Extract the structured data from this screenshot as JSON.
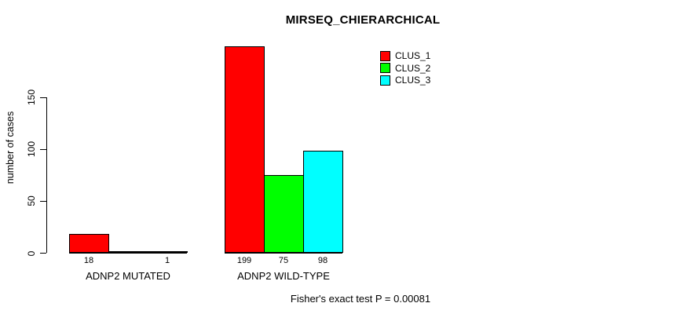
{
  "page": {
    "background": "#ffffff",
    "text_color": "#000000"
  },
  "chart_data": {
    "type": "bar",
    "title": "MIRSEQ_CHIERARCHICAL",
    "ylabel": "number of cases",
    "xlabel": "",
    "categories": [
      "ADNP2 MUTATED",
      "ADNP2 WILD-TYPE"
    ],
    "series": [
      {
        "name": "CLUS_1",
        "color": "#ff0000",
        "values": [
          18,
          199
        ]
      },
      {
        "name": "CLUS_2",
        "color": "#00ff00",
        "values": [
          0,
          75
        ]
      },
      {
        "name": "CLUS_3",
        "color": "#00ffff",
        "values": [
          1,
          98
        ]
      }
    ],
    "bar_value_labels": [
      [
        "18",
        "",
        "1"
      ],
      [
        "199",
        "75",
        "98"
      ]
    ],
    "yticks": [
      0,
      50,
      100,
      150
    ],
    "ylim": [
      0,
      150
    ],
    "grid": false,
    "legend": {
      "position": "top-right",
      "entries": [
        "CLUS_1",
        "CLUS_2",
        "CLUS_3"
      ]
    },
    "annotation": "Fisher's exact test P = 0.00081"
  }
}
